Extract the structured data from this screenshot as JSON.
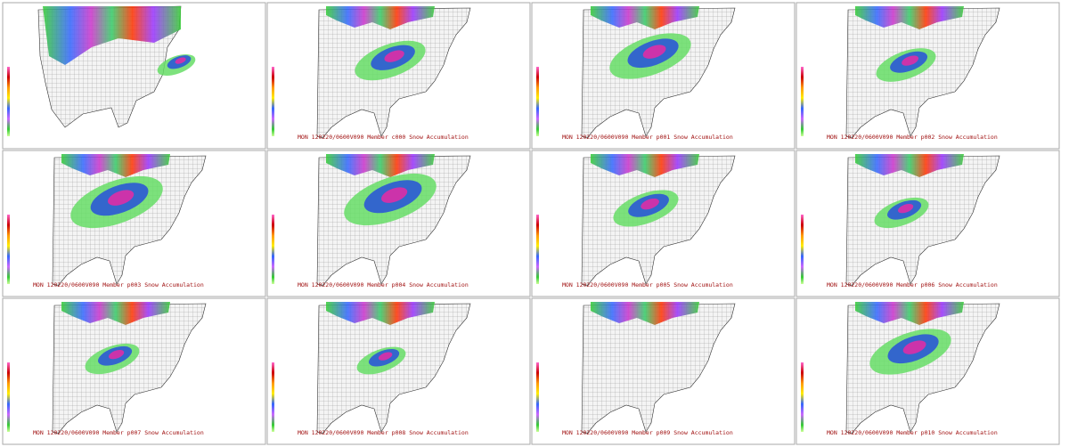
{
  "panels": [
    {
      "caption": null
    },
    {
      "caption": "MON 120220/0600V090  Member c000 Snow Accumulation"
    },
    {
      "caption": "MON 120220/0600V090  Member p001 Snow Accumulation"
    },
    {
      "caption": "MON 120220/0600V090  Member p002 Snow Accumulation"
    },
    {
      "caption": "MON 120220/0600V090  Member p003 Snow Accumulation"
    },
    {
      "caption": "MON 120220/0600V090  Member p004 Snow Accumulation"
    },
    {
      "caption": "MON 120220/0600V090  Member p005 Snow Accumulation"
    },
    {
      "caption": "MON 120220/0600V090  Member p006 Snow Accumulation"
    },
    {
      "caption": "MON 120220/0600V090  Member p007 Snow Accumulation"
    },
    {
      "caption": "MON 120220/0600V090  Member p008 Snow Accumulation"
    },
    {
      "caption": "MON 120220/0600V090  Member p009 Snow Accumulation"
    },
    {
      "caption": "MON 120220/0600V090  Member p010 Snow Accumulation"
    }
  ]
}
